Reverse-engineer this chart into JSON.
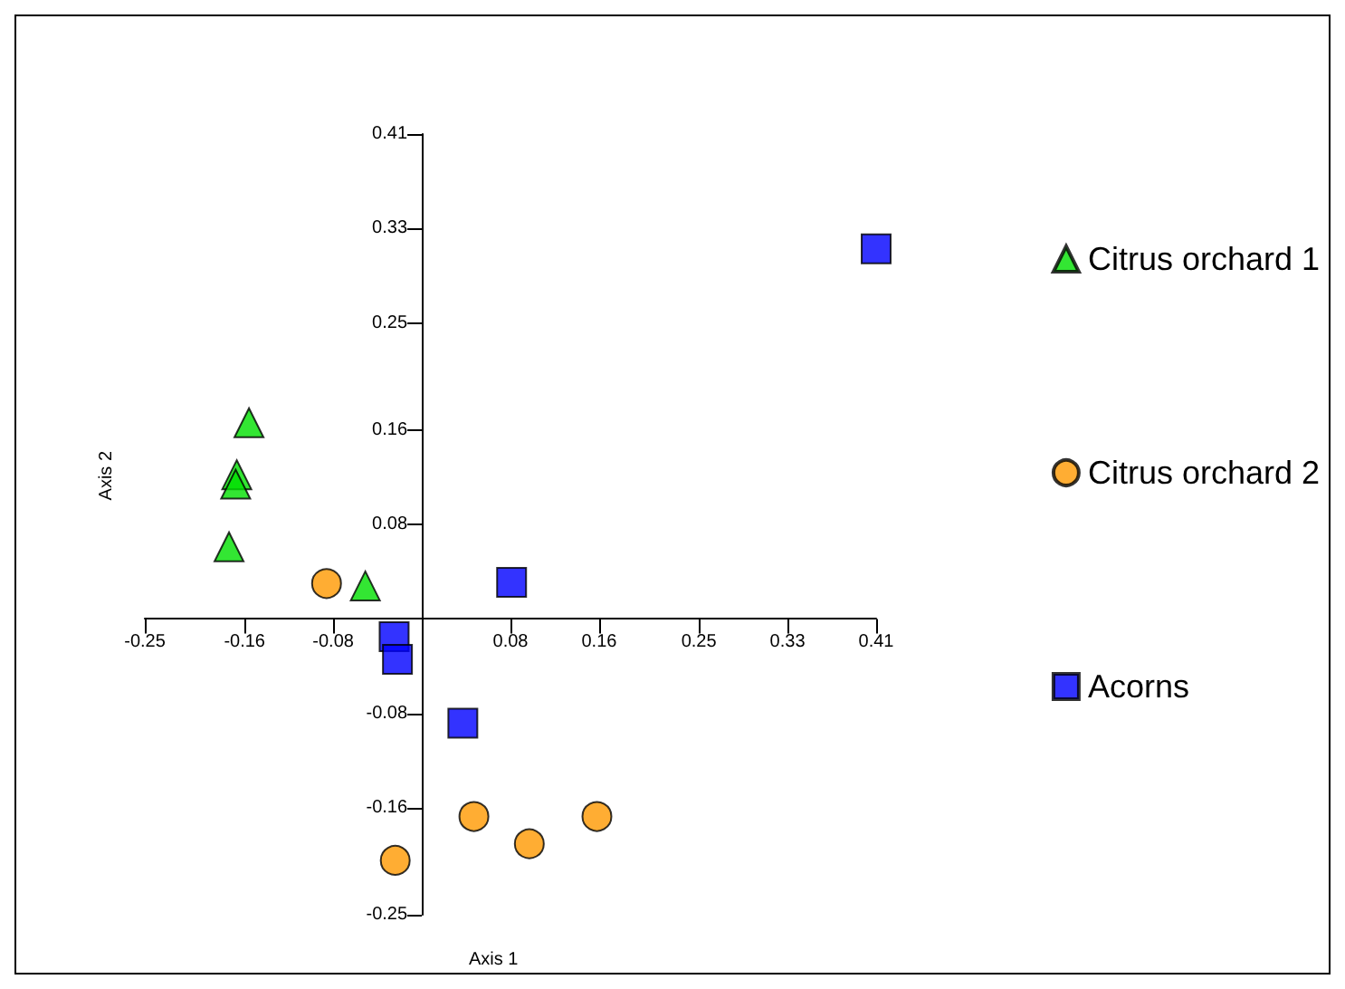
{
  "chart_data": {
    "type": "scatter",
    "xlabel": "Axis 1",
    "ylabel": "Axis 2",
    "legend": "right",
    "xlim": [
      -0.25,
      0.41
    ],
    "ylim": [
      -0.25,
      0.41
    ],
    "xticks": [
      -0.25,
      -0.16,
      -0.08,
      0.08,
      0.16,
      0.25,
      0.33,
      0.41
    ],
    "yticks": [
      -0.25,
      -0.16,
      -0.08,
      0.08,
      0.16,
      0.25,
      0.33,
      0.41
    ],
    "series": [
      {
        "name": "Citrus orchard 1",
        "color": "#00e000",
        "marker": "triangle",
        "x": [
          -0.156,
          -0.167,
          -0.168,
          -0.174,
          -0.051
        ],
        "values": [
          0.166,
          0.122,
          0.114,
          0.061,
          0.028
        ]
      },
      {
        "name": "Citrus orchard 2",
        "color": "#ff9900",
        "marker": "circle",
        "x": [
          -0.086,
          0.047,
          0.158,
          0.097,
          -0.024
        ],
        "values": [
          0.03,
          -0.167,
          -0.167,
          -0.19,
          -0.204
        ]
      },
      {
        "name": "Acorns",
        "color": "#0000ff",
        "marker": "square",
        "x": [
          0.41,
          0.081,
          -0.025,
          -0.022,
          0.037
        ],
        "values": [
          0.313,
          0.031,
          -0.015,
          -0.034,
          -0.088
        ]
      }
    ]
  }
}
